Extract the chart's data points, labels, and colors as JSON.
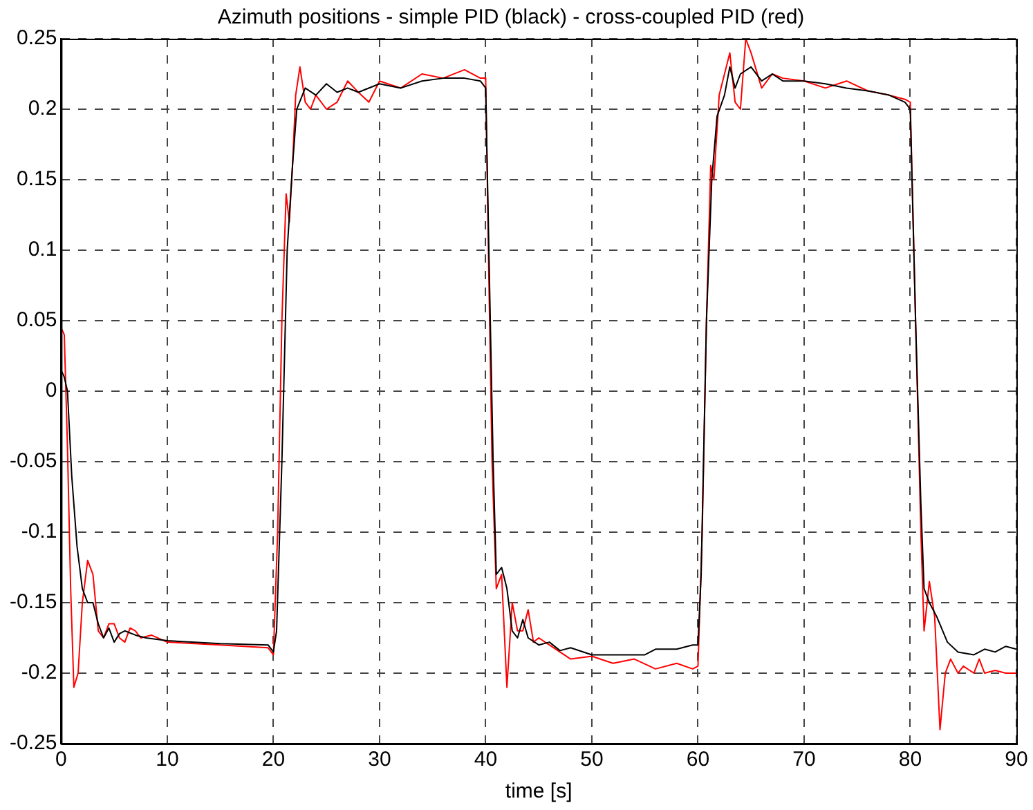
{
  "chart_data": {
    "type": "line",
    "title": "Azimuth positions - simple PID (black) - cross-coupled PID (red)",
    "xlabel": "time [s]",
    "xlim": [
      0,
      90
    ],
    "xticks": [
      0,
      10,
      20,
      30,
      40,
      50,
      60,
      70,
      80,
      90
    ],
    "ylim": [
      -0.25,
      0.25
    ],
    "yticks": [
      -0.25,
      -0.2,
      -0.15,
      -0.1,
      -0.05,
      0,
      0.05,
      0.1,
      0.15,
      0.2,
      0.25
    ],
    "grid": true,
    "legend": false,
    "marker": "none",
    "line_style": "solid",
    "series": [
      {
        "color": "#000000",
        "x": [
          0,
          0.3,
          0.6,
          1.0,
          1.5,
          2.0,
          2.5,
          3,
          3.5,
          4,
          4.5,
          5,
          5.5,
          6,
          7,
          8,
          10,
          15,
          19.5,
          20,
          20.3,
          20.8,
          21.3,
          21.8,
          22.2,
          23,
          24,
          25,
          26,
          27,
          28,
          30,
          32,
          34,
          36,
          38,
          39.5,
          40,
          40.3,
          40.7,
          41,
          41.5,
          42,
          42.5,
          43,
          43.5,
          44,
          45,
          46,
          47,
          48,
          50,
          55,
          56,
          58,
          59.5,
          60,
          60.3,
          60.8,
          61.3,
          61.8,
          62.5,
          63,
          63.5,
          64,
          65,
          66,
          67,
          68,
          70,
          72,
          74,
          76,
          78,
          79.5,
          80,
          80.5,
          81,
          81.3,
          81.8,
          82.5,
          83.5,
          84.5,
          86,
          87,
          88,
          89,
          90
        ],
        "values": [
          0.015,
          0.01,
          0.0,
          -0.06,
          -0.11,
          -0.14,
          -0.15,
          -0.15,
          -0.165,
          -0.175,
          -0.168,
          -0.178,
          -0.172,
          -0.17,
          -0.173,
          -0.175,
          -0.177,
          -0.179,
          -0.18,
          -0.185,
          -0.17,
          -0.05,
          0.1,
          0.16,
          0.2,
          0.215,
          0.21,
          0.218,
          0.212,
          0.215,
          0.212,
          0.218,
          0.215,
          0.22,
          0.222,
          0.222,
          0.22,
          0.215,
          0.1,
          -0.05,
          -0.13,
          -0.125,
          -0.14,
          -0.17,
          -0.175,
          -0.162,
          -0.175,
          -0.18,
          -0.178,
          -0.184,
          -0.182,
          -0.187,
          -0.187,
          -0.183,
          -0.183,
          -0.18,
          -0.18,
          -0.13,
          0.05,
          0.15,
          0.195,
          0.21,
          0.23,
          0.215,
          0.225,
          0.23,
          0.22,
          0.225,
          0.22,
          0.22,
          0.218,
          0.215,
          0.213,
          0.21,
          0.205,
          0.2,
          0.05,
          -0.08,
          -0.14,
          -0.15,
          -0.16,
          -0.178,
          -0.185,
          -0.187,
          -0.183,
          -0.185,
          -0.181,
          -0.183
        ]
      },
      {
        "color": "#ff0000",
        "x": [
          0,
          0.3,
          0.6,
          0.9,
          1.2,
          1.6,
          2.0,
          2.5,
          3.0,
          3.5,
          4,
          4.5,
          5,
          5.5,
          6,
          6.5,
          7,
          7.5,
          8.5,
          10,
          15,
          19.5,
          20,
          20.4,
          20.8,
          21.2,
          21.5,
          21.8,
          22.1,
          22.5,
          23,
          23.5,
          24,
          25,
          26,
          27,
          28,
          29,
          30,
          32,
          34,
          36,
          38,
          39.5,
          40,
          40.3,
          40.6,
          41,
          41.5,
          42,
          42.5,
          43,
          43.5,
          44,
          44.5,
          45,
          46,
          47,
          48,
          50,
          52,
          54,
          56,
          58,
          59.5,
          60,
          60.4,
          60.8,
          61.2,
          61.5,
          62,
          63,
          63.5,
          64,
          64.5,
          65,
          66,
          67,
          68,
          70,
          72,
          74,
          76,
          78,
          79.5,
          80,
          80.5,
          81,
          81.3,
          81.8,
          82.3,
          82.8,
          83.3,
          83.8,
          84.5,
          85,
          86,
          86.5,
          87,
          88,
          89,
          90
        ],
        "values": [
          0.045,
          0.04,
          -0.04,
          -0.14,
          -0.21,
          -0.2,
          -0.15,
          -0.12,
          -0.13,
          -0.17,
          -0.175,
          -0.165,
          -0.165,
          -0.175,
          -0.178,
          -0.168,
          -0.17,
          -0.175,
          -0.173,
          -0.178,
          -0.18,
          -0.182,
          -0.187,
          -0.1,
          0.05,
          0.14,
          0.12,
          0.16,
          0.21,
          0.23,
          0.205,
          0.2,
          0.21,
          0.2,
          0.205,
          0.22,
          0.212,
          0.205,
          0.22,
          0.215,
          0.225,
          0.222,
          0.228,
          0.222,
          0.222,
          0.08,
          -0.05,
          -0.14,
          -0.13,
          -0.21,
          -0.15,
          -0.17,
          -0.17,
          -0.155,
          -0.178,
          -0.175,
          -0.18,
          -0.185,
          -0.19,
          -0.188,
          -0.193,
          -0.19,
          -0.197,
          -0.193,
          -0.197,
          -0.195,
          -0.1,
          0.05,
          0.16,
          0.15,
          0.21,
          0.24,
          0.205,
          0.2,
          0.25,
          0.24,
          0.215,
          0.225,
          0.222,
          0.22,
          0.215,
          0.22,
          0.213,
          0.21,
          0.207,
          0.205,
          0.05,
          -0.1,
          -0.17,
          -0.135,
          -0.16,
          -0.24,
          -0.2,
          -0.19,
          -0.2,
          -0.195,
          -0.2,
          -0.19,
          -0.2,
          -0.198,
          -0.2,
          -0.2
        ]
      }
    ]
  }
}
